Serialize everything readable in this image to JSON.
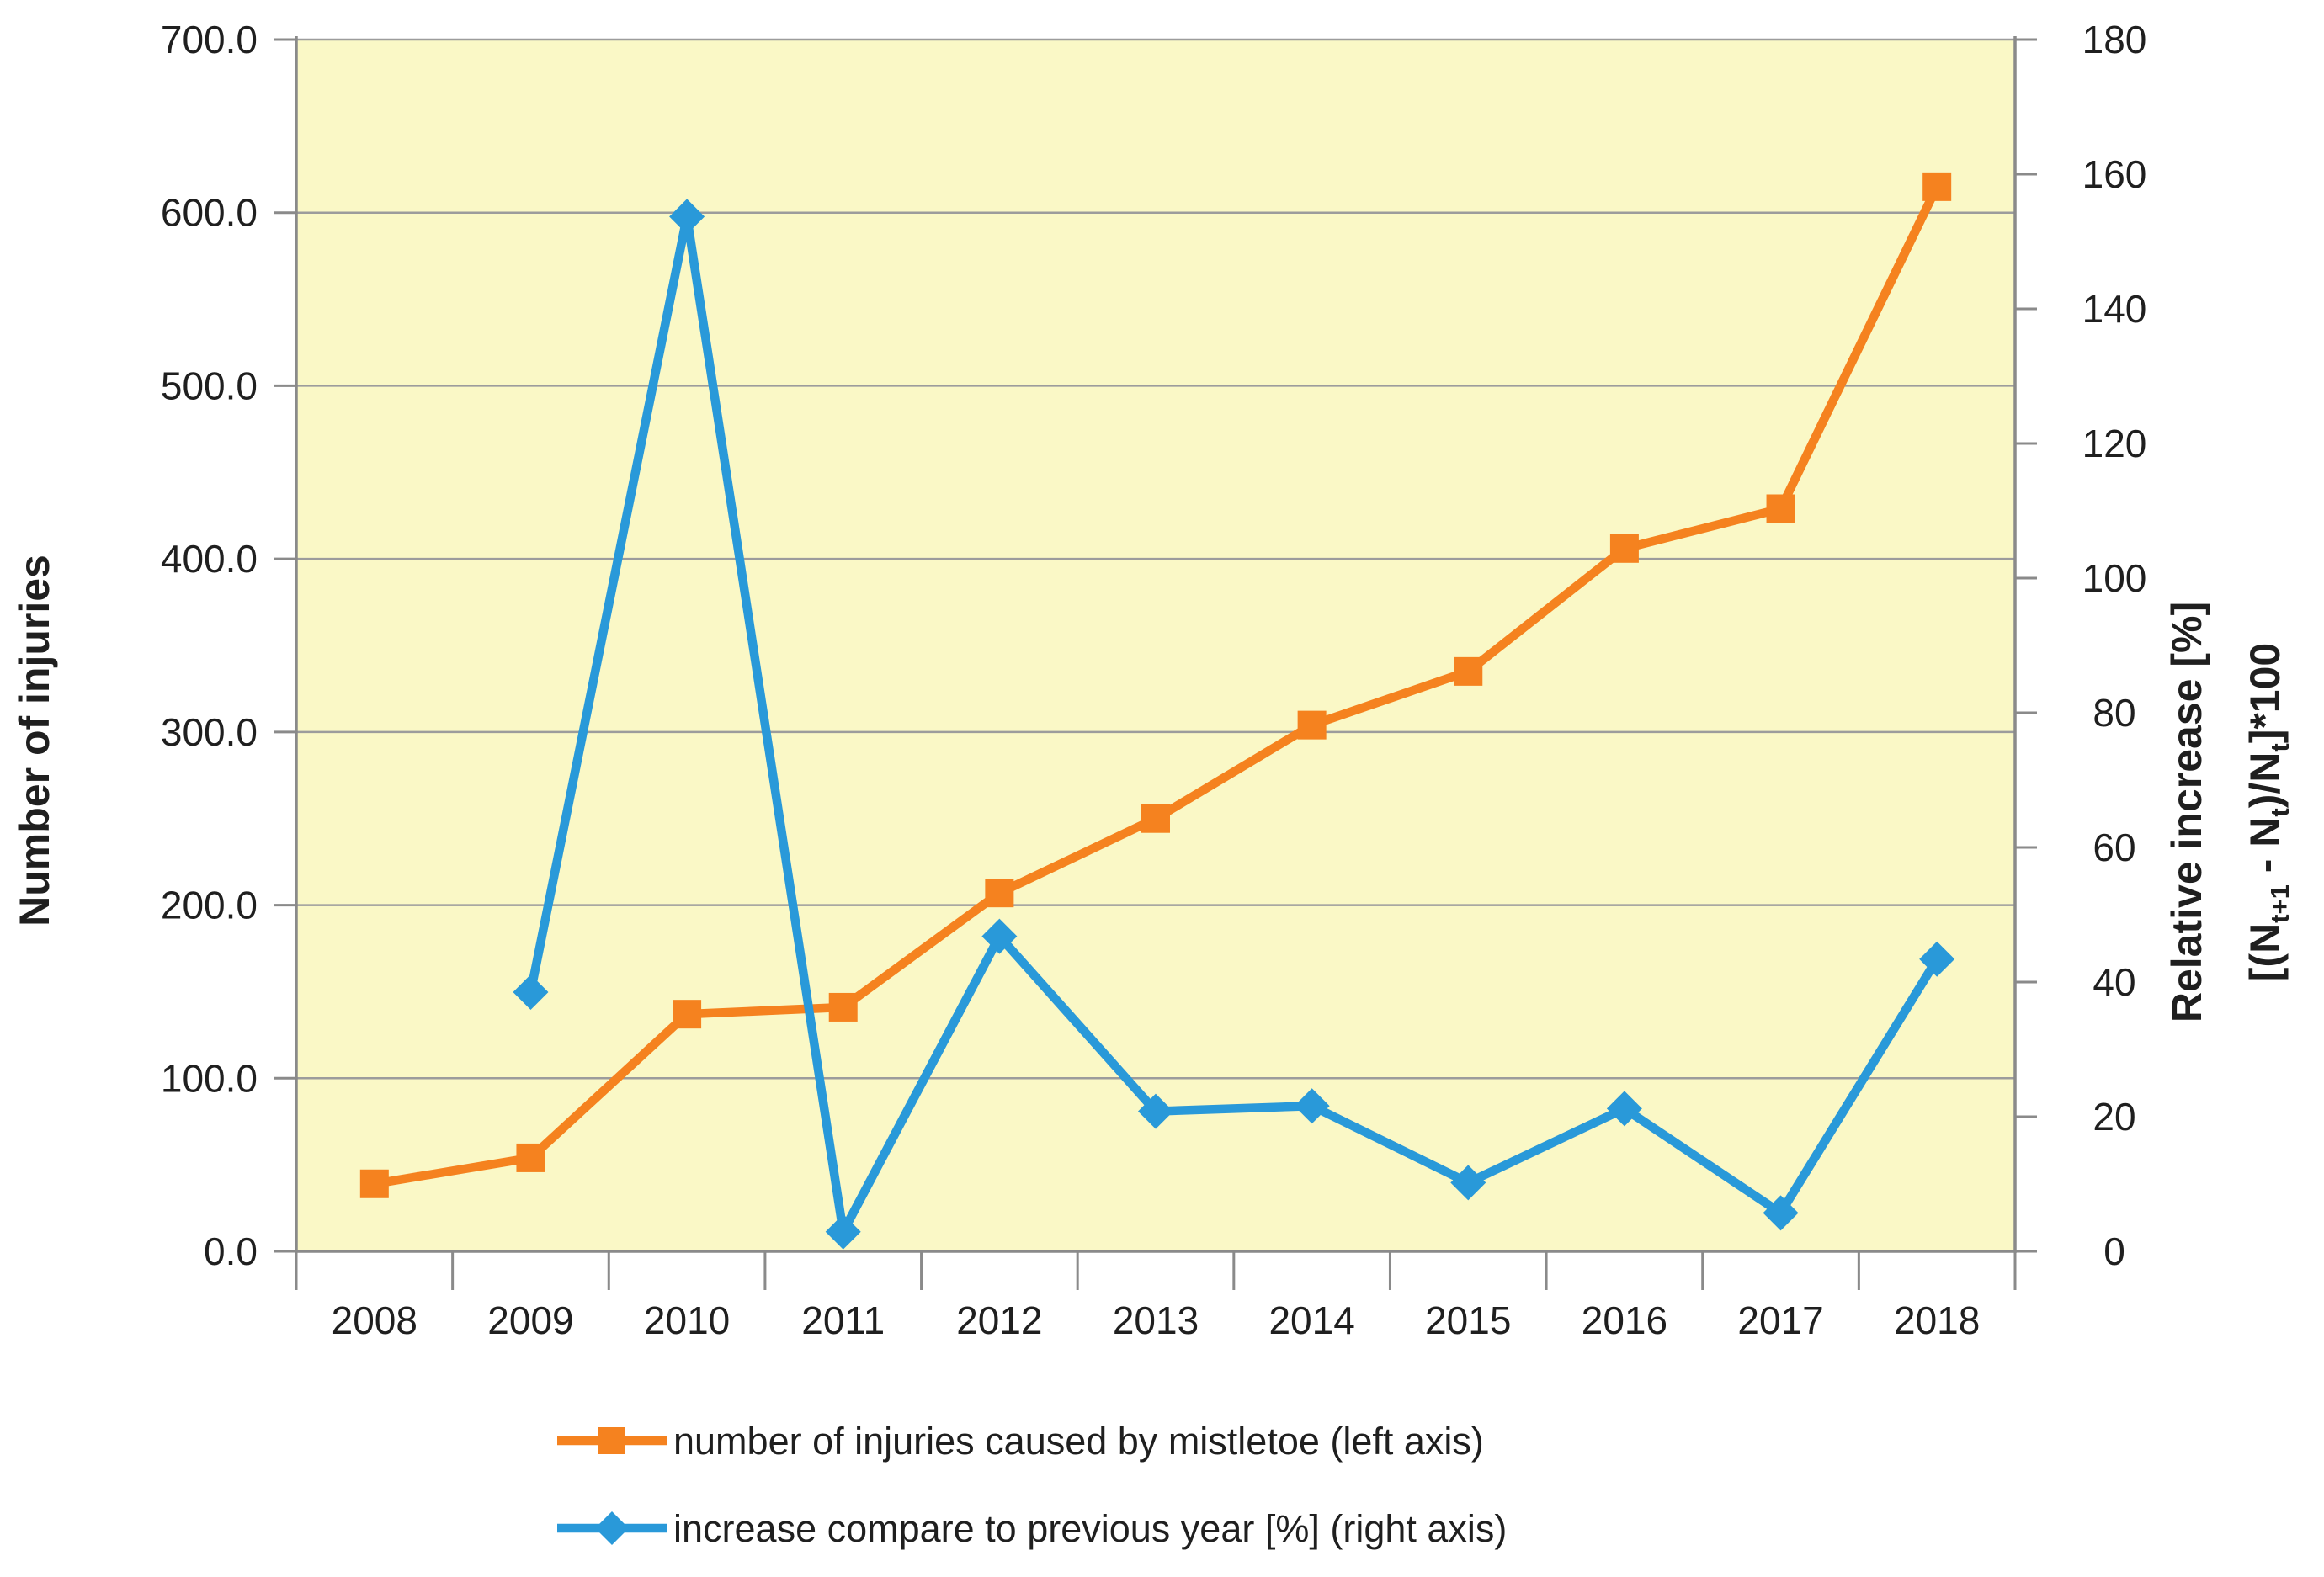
{
  "chart_data": {
    "type": "line",
    "title": "",
    "categories": [
      "2008",
      "2009",
      "2010",
      "2011",
      "2012",
      "2013",
      "2014",
      "2015",
      "2016",
      "2017",
      "2018"
    ],
    "series": [
      {
        "name": "number of injuries caused by mistletoe (left axis)",
        "axis": "left",
        "color": "#F5821F",
        "marker": "square",
        "values": [
          39,
          54,
          137,
          141,
          207,
          250,
          304,
          335,
          406,
          429,
          615
        ]
      },
      {
        "name": "increase compare to previous year [%] (right axis)",
        "axis": "right",
        "color": "#2999D9",
        "marker": "diamond",
        "values": [
          null,
          38.5,
          153.7,
          2.9,
          46.8,
          20.8,
          21.6,
          10.2,
          21.2,
          5.7,
          43.4
        ]
      }
    ],
    "left_axis": {
      "title": "Number of injuries",
      "min": 0,
      "max": 700,
      "step": 100,
      "tick_labels": [
        "0.0",
        "100.0",
        "200.0",
        "300.0",
        "400.0",
        "500.0",
        "600.0",
        "700.0"
      ]
    },
    "right_axis": {
      "title_line1": "Relative increase  [%]",
      "title_line2_segments": [
        {
          "text": "[(N"
        },
        {
          "text": "t+1",
          "sub": true
        },
        {
          "text": " - N"
        },
        {
          "text": "t",
          "sub": true
        },
        {
          "text": ")/N"
        },
        {
          "text": "t",
          "sub": true
        },
        {
          "text": "]*100"
        }
      ],
      "min": 0,
      "max": 180,
      "step": 20,
      "tick_labels": [
        "0",
        "20",
        "40",
        "60",
        "80",
        "100",
        "120",
        "140",
        "160",
        "180"
      ]
    },
    "x_axis": {
      "labels": [
        "2008",
        "2009",
        "2010",
        "2011",
        "2012",
        "2013",
        "2014",
        "2015",
        "2016",
        "2017",
        "2018"
      ]
    },
    "legend": {
      "position": "bottom-left",
      "entries": [
        "number of injuries caused by mistletoe (left axis)",
        "increase compare to previous year [%] (right axis)"
      ]
    },
    "grid": true,
    "plot_bg": "#FAF8C6",
    "gridline_color": "#9C9C9C",
    "axis_color": "#8A8A8A",
    "text_color": "#1f1f1f"
  }
}
